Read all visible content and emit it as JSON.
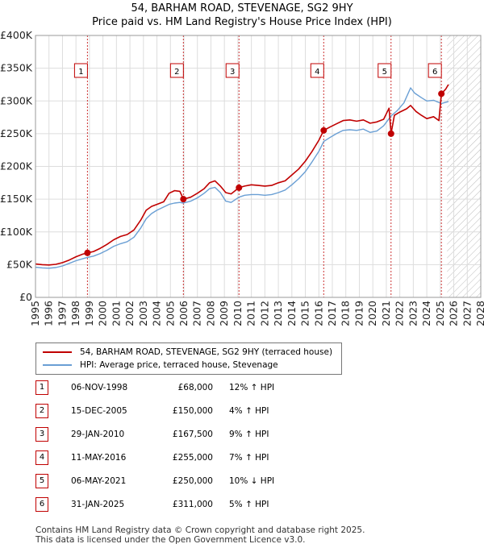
{
  "title": {
    "line1": "54, BARHAM ROAD, STEVENAGE, SG2 9HY",
    "line2": "Price paid vs. HM Land Registry's House Price Index (HPI)"
  },
  "colors": {
    "price_line": "#c00000",
    "hpi_line": "#6a9fd4",
    "grid": "#dddddd",
    "panel_bg": "#ffffff",
    "marker_line": "#c00000",
    "future_hatch": "#bbbbbb"
  },
  "legend": {
    "price_label": "54, BARHAM ROAD, STEVENAGE, SG2 9HY (terraced house)",
    "hpi_label": "HPI: Average price, terraced house, Stevenage"
  },
  "transactions": [
    {
      "num": "1",
      "date": "06-NOV-1998",
      "price": "£68,000",
      "hpi": "12% ↑ HPI"
    },
    {
      "num": "2",
      "date": "15-DEC-2005",
      "price": "£150,000",
      "hpi": "4% ↑ HPI"
    },
    {
      "num": "3",
      "date": "29-JAN-2010",
      "price": "£167,500",
      "hpi": "9% ↑ HPI"
    },
    {
      "num": "4",
      "date": "11-MAY-2016",
      "price": "£255,000",
      "hpi": "7% ↑ HPI"
    },
    {
      "num": "5",
      "date": "06-MAY-2021",
      "price": "£250,000",
      "hpi": "10% ↓ HPI"
    },
    {
      "num": "6",
      "date": "31-JAN-2025",
      "price": "£311,000",
      "hpi": "5% ↑ HPI"
    }
  ],
  "footer": {
    "line1": "Contains HM Land Registry data © Crown copyright and database right 2025.",
    "line2": "This data is licensed under the Open Government Licence v3.0."
  },
  "chart_data": {
    "type": "line",
    "title": "54, BARHAM ROAD, STEVENAGE, SG2 9HY — Price paid vs. HM Land Registry's House Price Index (HPI)",
    "xlabel": "",
    "ylabel": "",
    "xlim": [
      1995,
      2028
    ],
    "ylim": [
      0,
      400000
    ],
    "x_ticks": [
      1995,
      1996,
      1997,
      1998,
      1999,
      2000,
      2001,
      2002,
      2003,
      2004,
      2005,
      2006,
      2007,
      2008,
      2009,
      2010,
      2011,
      2012,
      2013,
      2014,
      2015,
      2016,
      2017,
      2018,
      2019,
      2020,
      2021,
      2022,
      2023,
      2024,
      2025,
      2026,
      2027,
      2028
    ],
    "y_ticks": [
      0,
      50000,
      100000,
      150000,
      200000,
      250000,
      300000,
      350000,
      400000
    ],
    "y_tick_labels": [
      "£0",
      "£50K",
      "£100K",
      "£150K",
      "£200K",
      "£250K",
      "£300K",
      "£350K",
      "£400K"
    ],
    "grid": true,
    "forecast_region_start": 2025.5,
    "sales": [
      {
        "label": "1",
        "x": 1998.85,
        "y": 68000
      },
      {
        "label": "2",
        "x": 2005.96,
        "y": 150000
      },
      {
        "label": "3",
        "x": 2010.08,
        "y": 167500
      },
      {
        "label": "4",
        "x": 2016.36,
        "y": 255000
      },
      {
        "label": "5",
        "x": 2021.35,
        "y": 250000
      },
      {
        "label": "6",
        "x": 2025.08,
        "y": 311000
      }
    ],
    "series": [
      {
        "name": "54, BARHAM ROAD, STEVENAGE, SG2 9HY (terraced house)",
        "color": "#c00000",
        "points": [
          [
            1995,
            51000
          ],
          [
            1995.5,
            50000
          ],
          [
            1996,
            49500
          ],
          [
            1996.5,
            50500
          ],
          [
            1997,
            53000
          ],
          [
            1997.5,
            57000
          ],
          [
            1998,
            62000
          ],
          [
            1998.5,
            66000
          ],
          [
            1998.85,
            68000
          ],
          [
            1999.3,
            70000
          ],
          [
            1999.8,
            75000
          ],
          [
            2000.3,
            81000
          ],
          [
            2000.8,
            88000
          ],
          [
            2001.3,
            93000
          ],
          [
            2001.8,
            96000
          ],
          [
            2002.3,
            103000
          ],
          [
            2002.8,
            118000
          ],
          [
            2003.2,
            133000
          ],
          [
            2003.6,
            139000
          ],
          [
            2004,
            142000
          ],
          [
            2004.5,
            146000
          ],
          [
            2004.9,
            159000
          ],
          [
            2005.3,
            163000
          ],
          [
            2005.7,
            162000
          ],
          [
            2005.96,
            150000
          ],
          [
            2006.5,
            153000
          ],
          [
            2007,
            159000
          ],
          [
            2007.5,
            166000
          ],
          [
            2007.9,
            175000
          ],
          [
            2008.3,
            178000
          ],
          [
            2008.7,
            170000
          ],
          [
            2009.1,
            160000
          ],
          [
            2009.5,
            158000
          ],
          [
            2010.08,
            167500
          ],
          [
            2010.5,
            170000
          ],
          [
            2011,
            172000
          ],
          [
            2011.5,
            171000
          ],
          [
            2012,
            170000
          ],
          [
            2012.5,
            171000
          ],
          [
            2013,
            175000
          ],
          [
            2013.5,
            178000
          ],
          [
            2014,
            187000
          ],
          [
            2014.5,
            196000
          ],
          [
            2015,
            208000
          ],
          [
            2015.5,
            223000
          ],
          [
            2016,
            240000
          ],
          [
            2016.36,
            255000
          ],
          [
            2016.8,
            260000
          ],
          [
            2017.3,
            265000
          ],
          [
            2017.8,
            270000
          ],
          [
            2018.3,
            271000
          ],
          [
            2018.8,
            269000
          ],
          [
            2019.3,
            271000
          ],
          [
            2019.8,
            266000
          ],
          [
            2020.3,
            268000
          ],
          [
            2020.8,
            272000
          ],
          [
            2021.2,
            289000
          ],
          [
            2021.35,
            250000
          ],
          [
            2021.6,
            278000
          ],
          [
            2022,
            283000
          ],
          [
            2022.5,
            288000
          ],
          [
            2022.8,
            293000
          ],
          [
            2023.2,
            284000
          ],
          [
            2023.6,
            278000
          ],
          [
            2024,
            273000
          ],
          [
            2024.5,
            276000
          ],
          [
            2024.9,
            270000
          ],
          [
            2025.08,
            311000
          ],
          [
            2025.4,
            318000
          ],
          [
            2025.6,
            325000
          ]
        ]
      },
      {
        "name": "HPI: Average price, terraced house, Stevenage",
        "color": "#6a9fd4",
        "points": [
          [
            1995,
            46000
          ],
          [
            1995.5,
            45000
          ],
          [
            1996,
            44500
          ],
          [
            1996.5,
            45500
          ],
          [
            1997,
            48000
          ],
          [
            1997.5,
            52000
          ],
          [
            1998,
            56000
          ],
          [
            1998.5,
            59000
          ],
          [
            1998.85,
            61000
          ],
          [
            1999.3,
            63000
          ],
          [
            1999.8,
            67000
          ],
          [
            2000.3,
            72000
          ],
          [
            2000.8,
            78000
          ],
          [
            2001.3,
            82000
          ],
          [
            2001.8,
            85000
          ],
          [
            2002.3,
            92000
          ],
          [
            2002.8,
            106000
          ],
          [
            2003.2,
            120000
          ],
          [
            2003.6,
            128000
          ],
          [
            2004,
            133000
          ],
          [
            2004.5,
            138000
          ],
          [
            2004.9,
            142000
          ],
          [
            2005.3,
            144000
          ],
          [
            2005.7,
            145000
          ],
          [
            2005.96,
            144000
          ],
          [
            2006.5,
            147000
          ],
          [
            2007,
            152000
          ],
          [
            2007.5,
            159000
          ],
          [
            2007.9,
            166000
          ],
          [
            2008.3,
            168000
          ],
          [
            2008.7,
            160000
          ],
          [
            2009.1,
            147000
          ],
          [
            2009.5,
            145000
          ],
          [
            2010.08,
            153000
          ],
          [
            2010.5,
            156000
          ],
          [
            2011,
            157000
          ],
          [
            2011.5,
            157000
          ],
          [
            2012,
            156000
          ],
          [
            2012.5,
            157000
          ],
          [
            2013,
            160000
          ],
          [
            2013.5,
            164000
          ],
          [
            2014,
            172000
          ],
          [
            2014.5,
            181000
          ],
          [
            2015,
            192000
          ],
          [
            2015.5,
            207000
          ],
          [
            2016,
            223000
          ],
          [
            2016.36,
            238000
          ],
          [
            2016.8,
            244000
          ],
          [
            2017.3,
            250000
          ],
          [
            2017.8,
            255000
          ],
          [
            2018.3,
            256000
          ],
          [
            2018.8,
            255000
          ],
          [
            2019.3,
            257000
          ],
          [
            2019.8,
            252000
          ],
          [
            2020.3,
            254000
          ],
          [
            2020.8,
            262000
          ],
          [
            2021.35,
            277000
          ],
          [
            2021.8,
            285000
          ],
          [
            2022.3,
            297000
          ],
          [
            2022.8,
            320000
          ],
          [
            2023.1,
            312000
          ],
          [
            2023.6,
            305000
          ],
          [
            2024,
            300000
          ],
          [
            2024.5,
            301000
          ],
          [
            2025.08,
            296000
          ],
          [
            2025.4,
            298000
          ],
          [
            2025.6,
            299000
          ]
        ]
      }
    ]
  }
}
